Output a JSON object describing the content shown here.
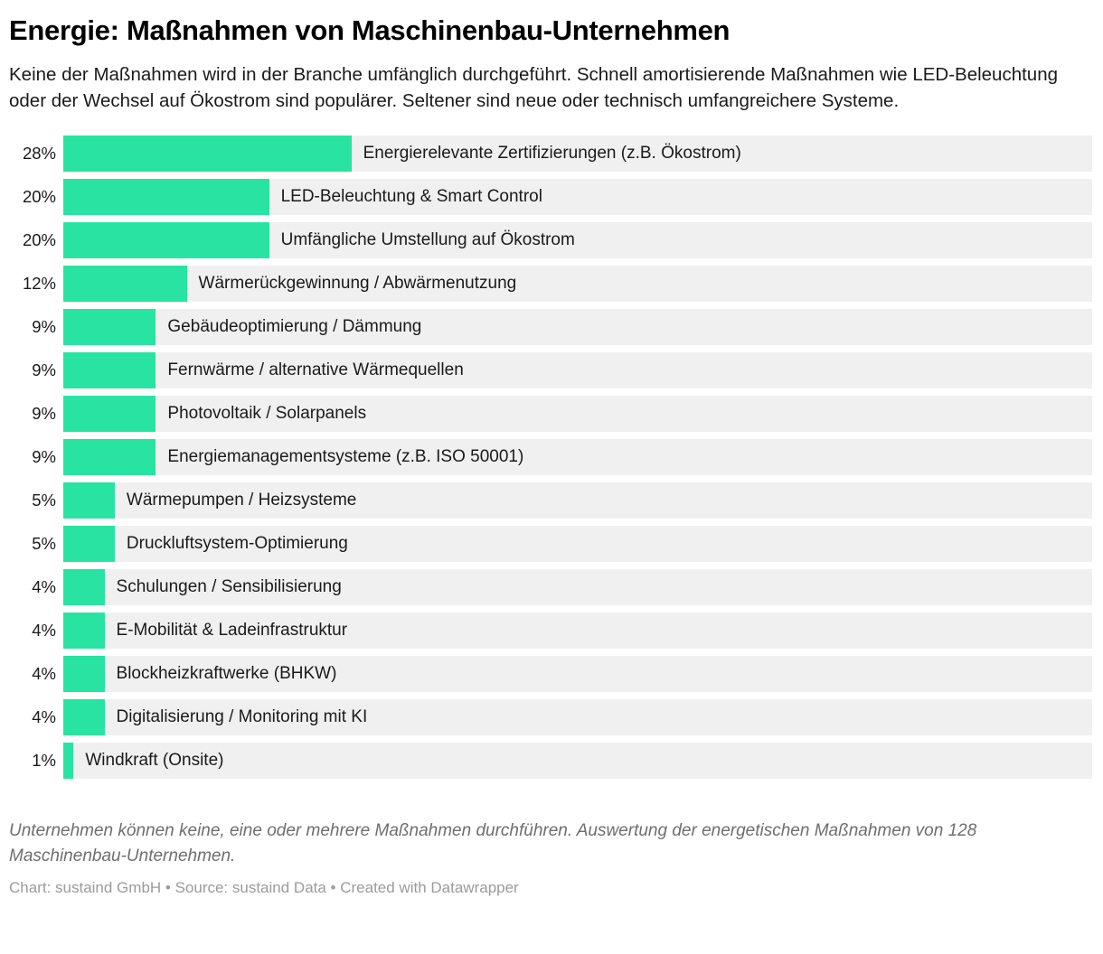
{
  "page": {
    "title": "Energie: Maßnahmen von Maschinenbau-Unternehmen",
    "subtitle": "Keine der Maßnahmen wird in der Branche umfänglich durchgeführt. Schnell amortisierende Maßnahmen wie LED-Beleuchtung oder der Wechsel auf Ökostrom sind populärer. Seltener sind neue oder technisch umfangreichere Systeme.",
    "notes": "Unternehmen können keine, eine oder mehrere Maßnahmen durchführen. Auswertung der energetischen Maßnahmen von 128 Maschinenbau-Unternehmen.",
    "credit": "Chart: sustaind GmbH • Source: sustaind Data • Created with Datawrapper"
  },
  "chart_data": {
    "type": "bar",
    "orientation": "horizontal",
    "title": "Energie: Maßnahmen von Maschinenbau-Unternehmen",
    "xlabel": "",
    "ylabel": "",
    "xlim": [
      0,
      100
    ],
    "unit": "%",
    "value_suffix": "%",
    "grid": false,
    "legend": false,
    "bar_color": "#29e3a3",
    "track_color": "#f0f0f0",
    "categories": [
      "Energierelevante Zertifizierungen (z.B. Ökostrom)",
      "LED-Beleuchtung & Smart Control",
      "Umfängliche Umstellung auf Ökostrom",
      "Wärmerückgewinnung / Abwärmenutzung",
      "Gebäudeoptimierung / Dämmung",
      "Fernwärme / alternative Wärmequellen",
      "Photovoltaik / Solarpanels",
      "Energiemanagementsysteme (z.B. ISO 50001)",
      "Wärmepumpen / Heizsysteme",
      "Druckluftsystem-Optimierung",
      "Schulungen / Sensibilisierung",
      "E-Mobilität & Ladeinfrastruktur",
      "Blockheizkraftwerke (BHKW)",
      "Digitalisierung / Monitoring mit KI",
      "Windkraft (Onsite)"
    ],
    "values": [
      28,
      20,
      20,
      12,
      9,
      9,
      9,
      9,
      5,
      5,
      4,
      4,
      4,
      4,
      1
    ]
  }
}
